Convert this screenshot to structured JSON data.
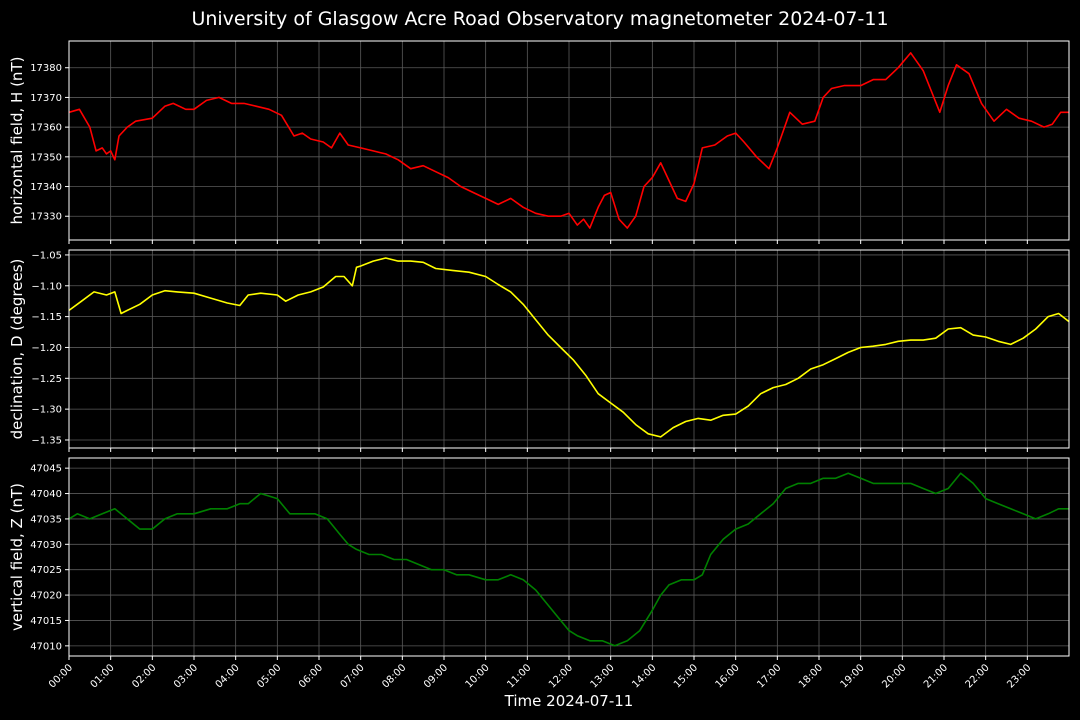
{
  "title": "University of Glasgow Acre Road Observatory magnetometer 2024-07-11",
  "chart_data": {
    "type": "line",
    "title": "University of Glasgow Acre Road Observatory magnetometer 2024-07-11",
    "xlabel": "Time 2024-07-11",
    "x_ticks": [
      "00:00",
      "01:00",
      "02:00",
      "03:00",
      "04:00",
      "05:00",
      "06:00",
      "07:00",
      "08:00",
      "09:00",
      "10:00",
      "11:00",
      "12:00",
      "13:00",
      "14:00",
      "15:00",
      "16:00",
      "17:00",
      "18:00",
      "19:00",
      "20:00",
      "21:00",
      "22:00",
      "23:00"
    ],
    "xlim_hours": [
      0,
      24
    ],
    "grid": true,
    "panels": [
      {
        "name": "horizontal field, H (nT)",
        "ylabel": "horizontal field, H (nT)",
        "color": "#ff0000",
        "ylim": [
          17322,
          17389
        ],
        "yticks": [
          17330,
          17340,
          17350,
          17360,
          17370,
          17380
        ],
        "x_hours": [
          0,
          0.25,
          0.5,
          0.65,
          0.8,
          0.9,
          1,
          1.1,
          1.2,
          1.4,
          1.6,
          2,
          2.3,
          2.5,
          2.8,
          3,
          3.3,
          3.6,
          3.9,
          4.2,
          4.5,
          4.8,
          5.1,
          5.4,
          5.6,
          5.8,
          6.1,
          6.3,
          6.5,
          6.7,
          7,
          7.3,
          7.6,
          7.9,
          8.2,
          8.5,
          8.8,
          9.1,
          9.4,
          9.7,
          10,
          10.3,
          10.6,
          10.9,
          11.2,
          11.5,
          11.8,
          12,
          12.2,
          12.35,
          12.5,
          12.7,
          12.85,
          13,
          13.2,
          13.4,
          13.6,
          13.8,
          14,
          14.2,
          14.4,
          14.6,
          14.8,
          15,
          15.2,
          15.5,
          15.8,
          16,
          16.2,
          16.5,
          16.8,
          17,
          17.3,
          17.6,
          17.9,
          18.1,
          18.3,
          18.6,
          19,
          19.3,
          19.6,
          19.9,
          20.2,
          20.5,
          20.7,
          20.9,
          21.1,
          21.3,
          21.6,
          21.9,
          22.2,
          22.5,
          22.8,
          23.1,
          23.4,
          23.6,
          23.8,
          24
        ],
        "values": [
          17365,
          17366,
          17360,
          17352,
          17353,
          17351,
          17352,
          17349,
          17357,
          17360,
          17362,
          17363,
          17367,
          17368,
          17366,
          17366,
          17369,
          17370,
          17368,
          17368,
          17367,
          17366,
          17364,
          17357,
          17358,
          17356,
          17355,
          17353,
          17358,
          17354,
          17353,
          17352,
          17351,
          17349,
          17346,
          17347,
          17345,
          17343,
          17340,
          17338,
          17336,
          17334,
          17336,
          17333,
          17331,
          17330,
          17330,
          17331,
          17327,
          17329,
          17326,
          17333,
          17337,
          17338,
          17329,
          17326,
          17330,
          17340,
          17343,
          17348,
          17342,
          17336,
          17335,
          17341,
          17353,
          17354,
          17357,
          17358,
          17355,
          17350,
          17346,
          17353,
          17365,
          17361,
          17362,
          17370,
          17373,
          17374,
          17374,
          17376,
          17376,
          17380,
          17385,
          17379,
          17372,
          17365,
          17374,
          17381,
          17378,
          17368,
          17362,
          17366,
          17363,
          17362,
          17360,
          17361,
          17365,
          17365
        ]
      },
      {
        "name": "declination, D (degrees)",
        "ylabel": "declination, D (degrees)",
        "color": "#ffff00",
        "ylim": [
          -1.363,
          -1.042
        ],
        "yticks": [
          -1.35,
          -1.3,
          -1.25,
          -1.2,
          -1.15,
          -1.1,
          -1.05
        ],
        "yticklabels": [
          "−1.35",
          "−1.30",
          "−1.25",
          "−1.20",
          "−1.15",
          "−1.10",
          "−1.05"
        ],
        "x_hours": [
          0,
          0.3,
          0.6,
          0.9,
          1.1,
          1.25,
          1.4,
          1.7,
          2,
          2.3,
          2.6,
          3,
          3.4,
          3.8,
          4.1,
          4.3,
          4.6,
          5,
          5.2,
          5.5,
          5.8,
          6.1,
          6.4,
          6.6,
          6.8,
          6.9,
          7,
          7.3,
          7.6,
          7.9,
          8.2,
          8.5,
          8.8,
          9.2,
          9.6,
          10,
          10.3,
          10.6,
          10.9,
          11.2,
          11.5,
          11.8,
          12.1,
          12.4,
          12.7,
          13,
          13.3,
          13.6,
          13.9,
          14.2,
          14.5,
          14.8,
          15.1,
          15.4,
          15.7,
          16,
          16.3,
          16.6,
          16.9,
          17.2,
          17.5,
          17.8,
          18.1,
          18.4,
          18.7,
          19,
          19.3,
          19.6,
          19.9,
          20.2,
          20.5,
          20.8,
          21.1,
          21.4,
          21.7,
          22,
          22.3,
          22.6,
          22.9,
          23.2,
          23.5,
          23.75,
          24
        ],
        "values": [
          -1.14,
          -1.125,
          -1.11,
          -1.115,
          -1.11,
          -1.145,
          -1.14,
          -1.13,
          -1.115,
          -1.108,
          -1.11,
          -1.112,
          -1.12,
          -1.128,
          -1.132,
          -1.115,
          -1.112,
          -1.115,
          -1.125,
          -1.115,
          -1.11,
          -1.102,
          -1.085,
          -1.085,
          -1.1,
          -1.07,
          -1.068,
          -1.06,
          -1.055,
          -1.06,
          -1.06,
          -1.062,
          -1.072,
          -1.075,
          -1.078,
          -1.085,
          -1.098,
          -1.11,
          -1.13,
          -1.155,
          -1.18,
          -1.2,
          -1.22,
          -1.245,
          -1.275,
          -1.29,
          -1.305,
          -1.325,
          -1.34,
          -1.345,
          -1.33,
          -1.32,
          -1.315,
          -1.318,
          -1.31,
          -1.308,
          -1.295,
          -1.275,
          -1.265,
          -1.26,
          -1.25,
          -1.235,
          -1.228,
          -1.218,
          -1.208,
          -1.2,
          -1.198,
          -1.195,
          -1.19,
          -1.188,
          -1.188,
          -1.185,
          -1.17,
          -1.168,
          -1.18,
          -1.183,
          -1.19,
          -1.195,
          -1.185,
          -1.17,
          -1.15,
          -1.145,
          -1.158
        ]
      },
      {
        "name": "vertical field, Z (nT)",
        "ylabel": "vertical field, Z (nT)",
        "color": "#008000",
        "ylim": [
          47008,
          47047
        ],
        "yticks": [
          47010,
          47015,
          47020,
          47025,
          47030,
          47035,
          47040,
          47045
        ],
        "x_hours": [
          0,
          0.2,
          0.5,
          0.8,
          1.1,
          1.4,
          1.7,
          2,
          2.3,
          2.6,
          3,
          3.4,
          3.8,
          4.1,
          4.3,
          4.6,
          5,
          5.3,
          5.6,
          5.9,
          6.2,
          6.5,
          6.7,
          6.9,
          7.2,
          7.5,
          7.8,
          8.1,
          8.4,
          8.7,
          9,
          9.3,
          9.6,
          10,
          10.3,
          10.6,
          10.9,
          11.2,
          11.5,
          11.8,
          12,
          12.2,
          12.5,
          12.8,
          13.1,
          13.4,
          13.7,
          14,
          14.2,
          14.4,
          14.7,
          15,
          15.2,
          15.4,
          15.7,
          16,
          16.3,
          16.6,
          16.9,
          17.2,
          17.5,
          17.8,
          18.1,
          18.4,
          18.7,
          19,
          19.3,
          19.6,
          19.9,
          20.2,
          20.5,
          20.8,
          21.1,
          21.4,
          21.7,
          22,
          22.3,
          22.6,
          22.9,
          23.2,
          23.5,
          23.75,
          24
        ],
        "values": [
          47035,
          47036,
          47035,
          47036,
          47037,
          47035,
          47033,
          47033,
          47035,
          47036,
          47036,
          47037,
          47037,
          47038,
          47038,
          47040,
          47039,
          47036,
          47036,
          47036,
          47035,
          47032,
          47030,
          47029,
          47028,
          47028,
          47027,
          47027,
          47026,
          47025,
          47025,
          47024,
          47024,
          47023,
          47023,
          47024,
          47023,
          47021,
          47018,
          47015,
          47013,
          47012,
          47011,
          47011,
          47010,
          47011,
          47013,
          47017,
          47020,
          47022,
          47023,
          47023,
          47024,
          47028,
          47031,
          47033,
          47034,
          47036,
          47038,
          47041,
          47042,
          47042,
          47043,
          47043,
          47044,
          47043,
          47042,
          47042,
          47042,
          47042,
          47041,
          47040,
          47041,
          47044,
          47042,
          47039,
          47038,
          47037,
          47036,
          47035,
          47036,
          47037,
          47037
        ]
      }
    ]
  }
}
